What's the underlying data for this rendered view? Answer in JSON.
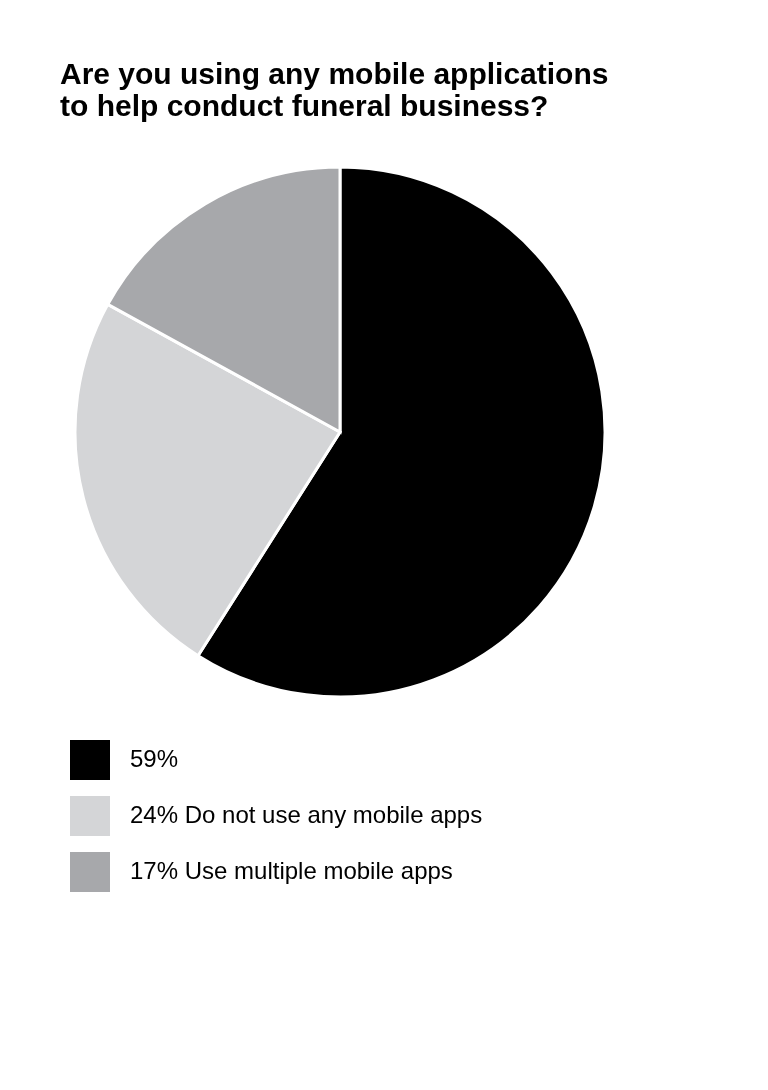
{
  "chart_data": {
    "type": "pie",
    "title": [
      "Are you using any mobile applications",
      "to help conduct funeral business?"
    ],
    "categories": [
      "59%",
      "24% Do not use any mobile apps",
      "17% Use multiple mobile apps"
    ],
    "values": [
      59,
      24,
      17
    ],
    "colors": [
      "#000000",
      "#d4d5d7",
      "#a7a8ab"
    ],
    "legend": "bottom"
  }
}
